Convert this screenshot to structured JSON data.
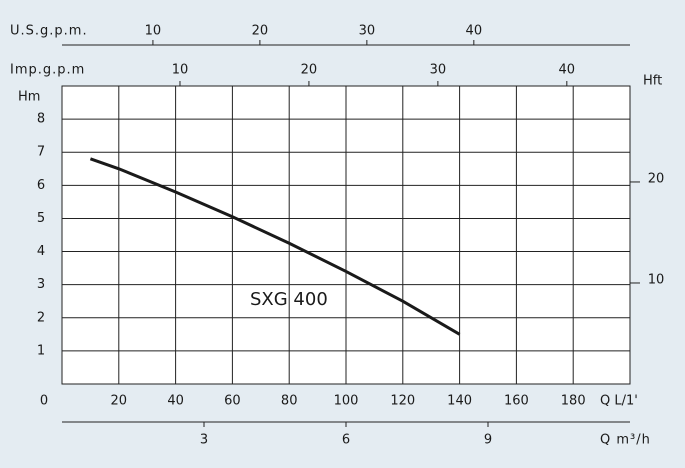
{
  "chart_data": {
    "type": "line",
    "x": [
      10,
      20,
      40,
      60,
      80,
      100,
      120,
      140
    ],
    "series": [
      {
        "name": "SXG 400",
        "color": "#1a1a1a",
        "values": [
          6.8,
          6.5,
          5.8,
          5.05,
          4.25,
          3.4,
          2.5,
          1.5
        ]
      }
    ],
    "xlabel": "Q L/1'",
    "ylabel": "Hm",
    "xlim": [
      0,
      200
    ],
    "xticks": [
      0,
      20,
      40,
      60,
      80,
      100,
      120,
      140,
      160,
      180
    ],
    "ylim": [
      0,
      9
    ],
    "yticks": [
      1,
      2,
      3,
      4,
      5,
      6,
      7,
      8
    ],
    "y2label": "Hft",
    "y2lim": [
      0,
      29.5
    ],
    "y2ticks": [
      10,
      20
    ],
    "extra_x_axes": [
      {
        "label": "U.S.g.p.m.",
        "position": "top",
        "xlim": [
          1.5,
          54.6
        ],
        "xticks": [
          10,
          20,
          30,
          40
        ]
      },
      {
        "label": "Imp.g.p.m",
        "position": "top-inner",
        "xlim": [
          0.85,
          44.9
        ],
        "xticks": [
          10,
          20,
          30,
          40
        ]
      },
      {
        "label": "Q m³/h",
        "position": "bottom-outer",
        "xlim": [
          0,
          12
        ],
        "xticks": [
          3,
          6,
          9
        ]
      }
    ],
    "grid": true
  }
}
